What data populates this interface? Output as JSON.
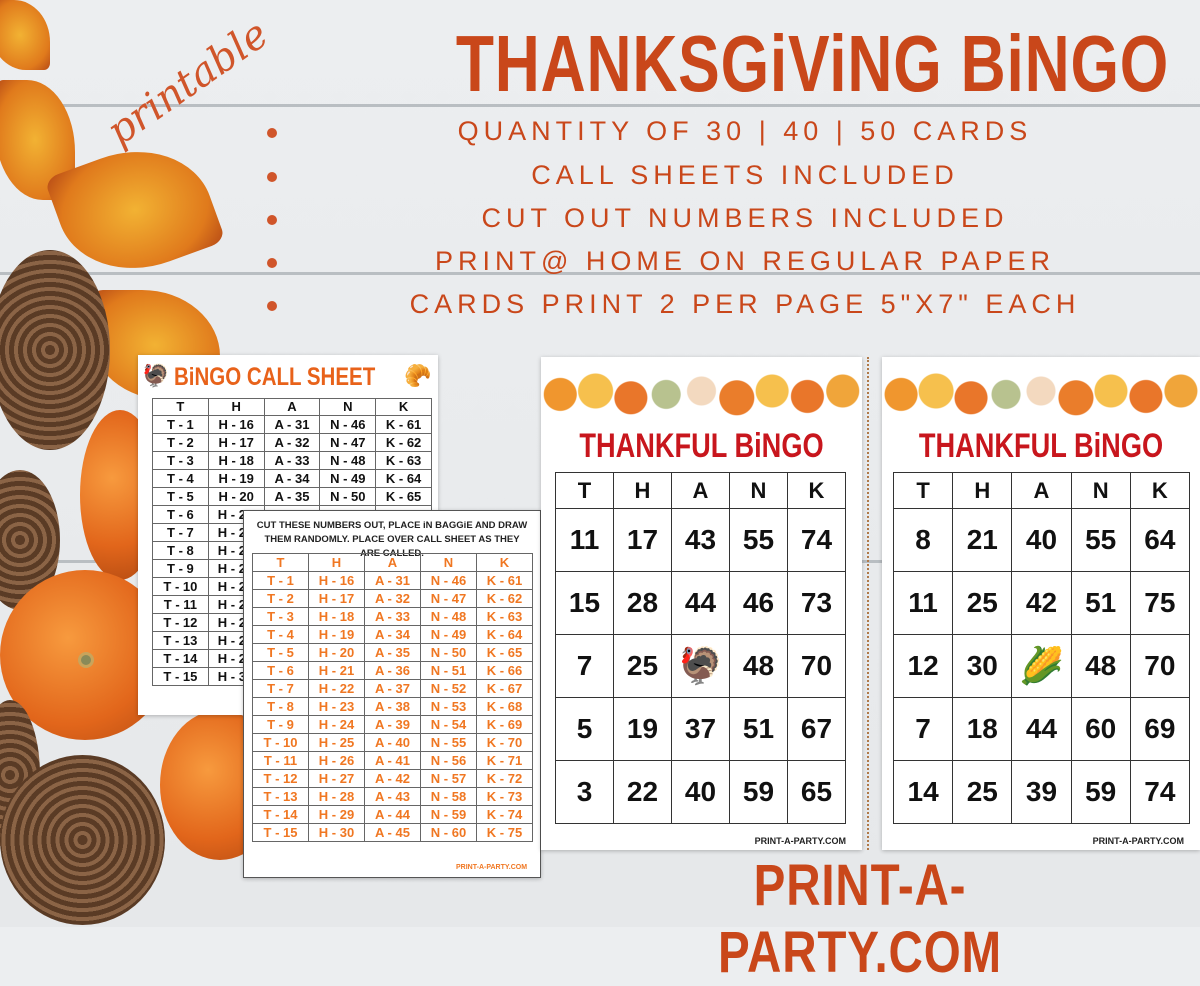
{
  "header": {
    "script_label": "printable",
    "title": "THANKSGiViNG BiNGO"
  },
  "features": [
    "QUANTITY OF 30 | 40 | 50 CARDS",
    "CALL SHEETS INCLUDED",
    "CUT OUT NUMBERS INCLUDED",
    "PRINT@ HOME ON REGULAR PAPER",
    "CARDS PRINT 2 PER PAGE 5\"X7\" EACH"
  ],
  "colors": {
    "accent": "#c9471a",
    "cut_numbers": "#f07722",
    "card_title": "#c8161d"
  },
  "call_sheet": {
    "title": "BiNGO CALL SHEET",
    "columns": [
      "T",
      "H",
      "A",
      "N",
      "K"
    ],
    "rows": [
      [
        "T - 1",
        "H - 16",
        "A - 31",
        "N - 46",
        "K - 61"
      ],
      [
        "T - 2",
        "H - 17",
        "A - 32",
        "N - 47",
        "K - 62"
      ],
      [
        "T - 3",
        "H - 18",
        "A - 33",
        "N - 48",
        "K - 63"
      ],
      [
        "T - 4",
        "H - 19",
        "A - 34",
        "N - 49",
        "K - 64"
      ],
      [
        "T - 5",
        "H - 20",
        "A - 35",
        "N - 50",
        "K - 65"
      ],
      [
        "T - 6",
        "H - 21"
      ],
      [
        "T - 7",
        "H - 22"
      ],
      [
        "T - 8",
        "H - 23"
      ],
      [
        "T - 9",
        "H - 24"
      ],
      [
        "T - 10",
        "H - 25"
      ],
      [
        "T - 11",
        "H - 26"
      ],
      [
        "T - 12",
        "H - 27"
      ],
      [
        "T - 13",
        "H - 28"
      ],
      [
        "T - 14",
        "H - 29"
      ],
      [
        "T - 15",
        "H - 30"
      ]
    ]
  },
  "cut_sheet": {
    "instructions": "CUT THESE NUMBERS OUT, PLACE iN BAGGiE AND DRAW THEM RANDOMLY. PLACE OVER CALL SHEET AS THEY ARE CALLED.",
    "columns": [
      "T",
      "H",
      "A",
      "N",
      "K"
    ],
    "rows": [
      [
        "T - 1",
        "H - 16",
        "A - 31",
        "N - 46",
        "K - 61"
      ],
      [
        "T - 2",
        "H - 17",
        "A - 32",
        "N - 47",
        "K - 62"
      ],
      [
        "T - 3",
        "H - 18",
        "A - 33",
        "N - 48",
        "K - 63"
      ],
      [
        "T - 4",
        "H - 19",
        "A - 34",
        "N - 49",
        "K - 64"
      ],
      [
        "T - 5",
        "H - 20",
        "A - 35",
        "N - 50",
        "K - 65"
      ],
      [
        "T - 6",
        "H - 21",
        "A - 36",
        "N - 51",
        "K - 66"
      ],
      [
        "T - 7",
        "H - 22",
        "A - 37",
        "N - 52",
        "K - 67"
      ],
      [
        "T - 8",
        "H - 23",
        "A - 38",
        "N - 53",
        "K - 68"
      ],
      [
        "T - 9",
        "H - 24",
        "A - 39",
        "N - 54",
        "K - 69"
      ],
      [
        "T - 10",
        "H - 25",
        "A - 40",
        "N - 55",
        "K - 70"
      ],
      [
        "T - 11",
        "H - 26",
        "A - 41",
        "N - 56",
        "K - 71"
      ],
      [
        "T - 12",
        "H - 27",
        "A - 42",
        "N - 57",
        "K - 72"
      ],
      [
        "T - 13",
        "H - 28",
        "A - 43",
        "N - 58",
        "K - 73"
      ],
      [
        "T - 14",
        "H - 29",
        "A - 44",
        "N - 59",
        "K - 74"
      ],
      [
        "T - 15",
        "H - 30",
        "A - 45",
        "N - 60",
        "K - 75"
      ]
    ],
    "footer": "PRINT-A-PARTY.COM"
  },
  "cards": [
    {
      "title": "THANKFUL BiNGO",
      "columns": [
        "T",
        "H",
        "A",
        "N",
        "K"
      ],
      "free_icon": "turkey-icon",
      "rows": [
        [
          "11",
          "17",
          "43",
          "55",
          "74"
        ],
        [
          "15",
          "28",
          "44",
          "46",
          "73"
        ],
        [
          "7",
          "25",
          "",
          "48",
          "70"
        ],
        [
          "5",
          "19",
          "37",
          "51",
          "67"
        ],
        [
          "3",
          "22",
          "40",
          "59",
          "65"
        ]
      ],
      "footer": "PRINT-A-PARTY.COM"
    },
    {
      "title": "THANKFUL BiNGO",
      "columns": [
        "T",
        "H",
        "A",
        "N",
        "K"
      ],
      "free_icon": "cornucopia-icon",
      "rows": [
        [
          "8",
          "21",
          "40",
          "55",
          "64"
        ],
        [
          "11",
          "25",
          "42",
          "51",
          "75"
        ],
        [
          "12",
          "30",
          "",
          "48",
          "70"
        ],
        [
          "7",
          "18",
          "44",
          "60",
          "69"
        ],
        [
          "14",
          "25",
          "39",
          "59",
          "74"
        ]
      ],
      "footer": "PRINT-A-PARTY.COM"
    }
  ],
  "site": "PRINT-A-PARTY.COM"
}
